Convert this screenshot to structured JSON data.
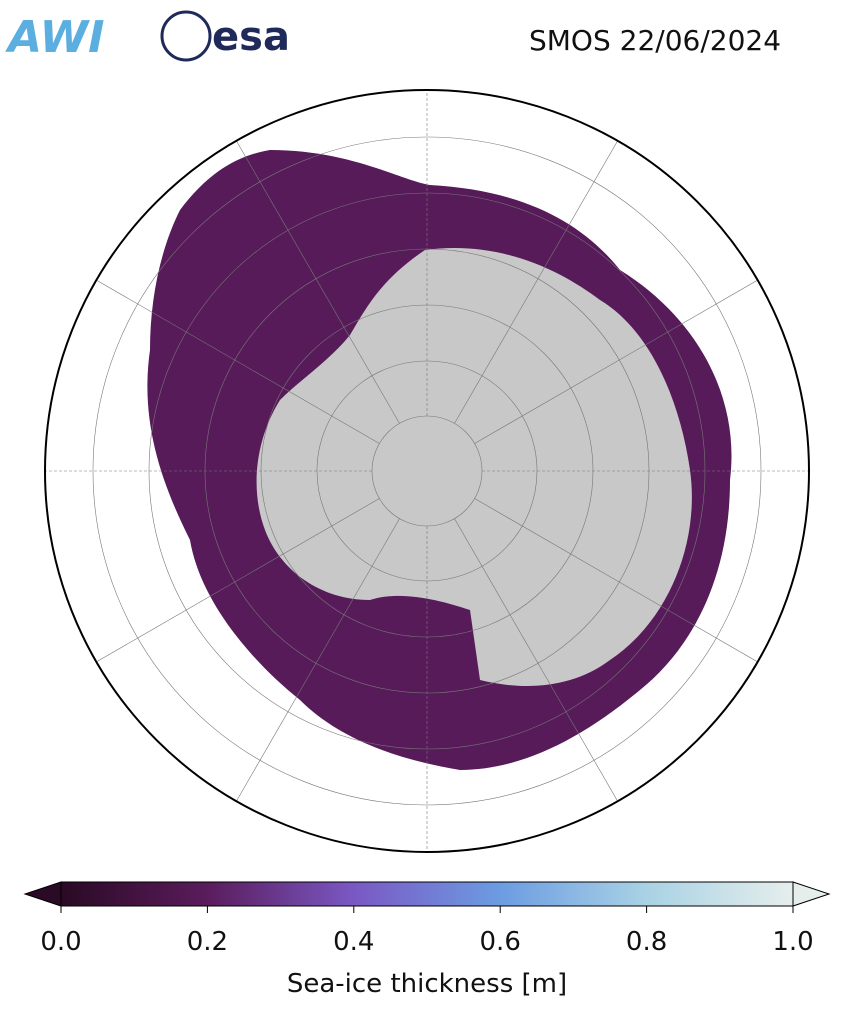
{
  "header": {
    "logos": [
      "AWI",
      "esa"
    ],
    "title": "SMOS 22/06/2024"
  },
  "colorbar": {
    "label": "Sea-ice thickness [m]",
    "lim": [
      0,
      1
    ],
    "ticks": [
      {
        "value": 0,
        "label": "0.0"
      },
      {
        "value": 0.2,
        "label": "0.2"
      },
      {
        "value": 0.4,
        "label": "0.4"
      },
      {
        "value": 0.6,
        "label": "0.6"
      },
      {
        "value": 0.8,
        "label": "0.8"
      },
      {
        "value": 1,
        "label": "1.0"
      }
    ],
    "colors": [
      "#2a0a24",
      "#5a1c5c",
      "#7a58c4",
      "#6c9ce2",
      "#a9d2e4",
      "#e6eeec"
    ]
  }
}
